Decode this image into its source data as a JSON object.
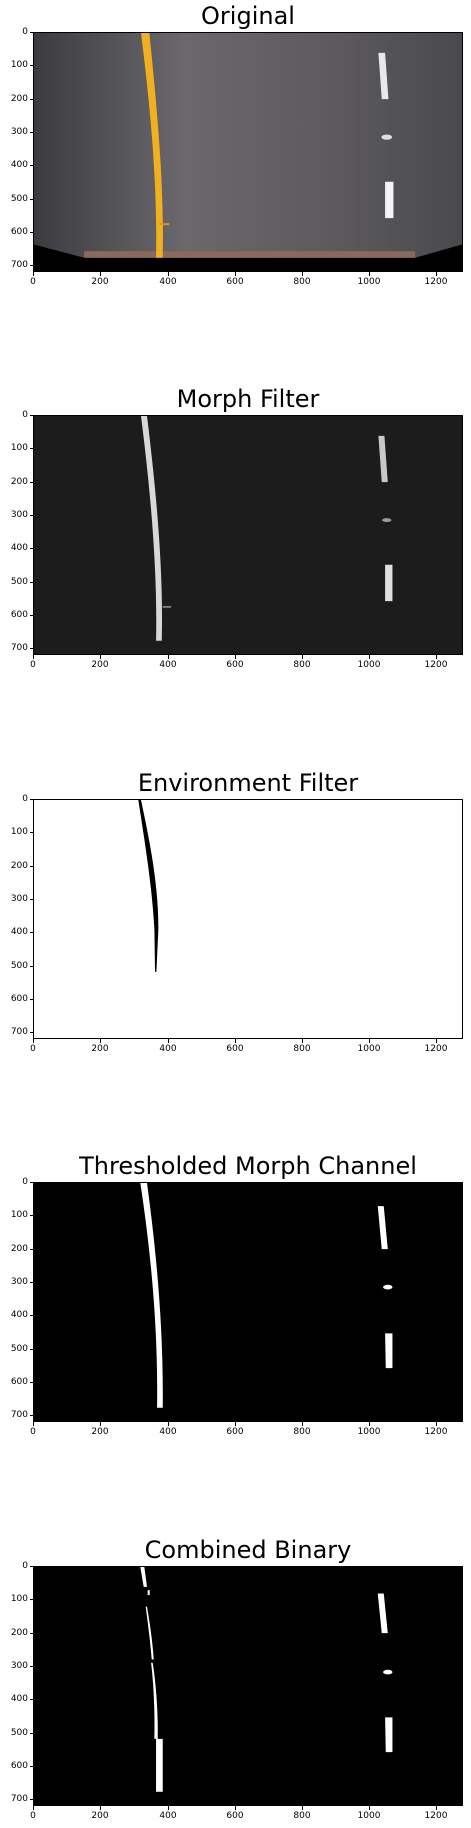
{
  "panels": [
    {
      "title": "Original"
    },
    {
      "title": "Morph Filter"
    },
    {
      "title": "Environment Filter"
    },
    {
      "title": "Thresholded Morph Channel"
    },
    {
      "title": "Combined Binary"
    }
  ],
  "axes": {
    "y_ticks": [
      "0",
      "100",
      "200",
      "300",
      "400",
      "500",
      "600",
      "700"
    ],
    "x_ticks": [
      "0",
      "200",
      "400",
      "600",
      "800",
      "1000",
      "1200"
    ]
  },
  "colors": {
    "road_gray": "#5a5a5f",
    "lane_yellow": "#f0b020",
    "binary_white": "#ffffff",
    "binary_black": "#000000"
  }
}
